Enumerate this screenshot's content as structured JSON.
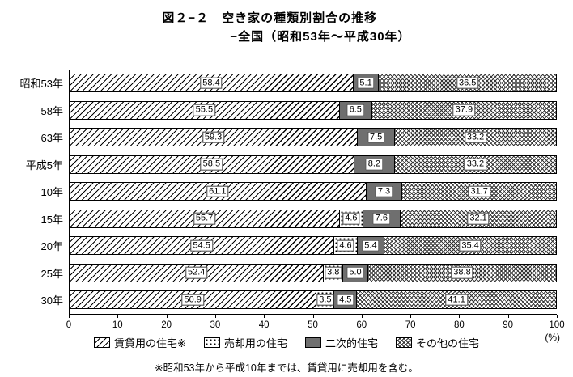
{
  "title": {
    "line1": "図２−２　空き家の種類別割合の推移",
    "line2": "−全国（昭和53年〜平成30年）"
  },
  "chart_data": {
    "type": "bar",
    "orientation": "horizontal",
    "stacked": true,
    "categories": [
      "昭和53年",
      "58年",
      "63年",
      "平成5年",
      "10年",
      "15年",
      "20年",
      "25年",
      "30年"
    ],
    "series": [
      {
        "key": "rental",
        "name": "賃貸用の住宅※",
        "pattern": "diagonal",
        "values": [
          58.4,
          55.5,
          59.3,
          58.5,
          61.1,
          55.7,
          54.5,
          52.4,
          50.9
        ]
      },
      {
        "key": "for-sale",
        "name": "売却用の住宅",
        "pattern": "dots",
        "values": [
          null,
          null,
          null,
          null,
          null,
          4.6,
          4.6,
          3.8,
          3.5
        ]
      },
      {
        "key": "secondary",
        "name": "二次的住宅",
        "pattern": "solid",
        "values": [
          5.1,
          6.5,
          7.5,
          8.2,
          7.3,
          7.6,
          5.4,
          5.0,
          4.5
        ]
      },
      {
        "key": "other",
        "name": "その他の住宅",
        "pattern": "cross",
        "values": [
          36.5,
          37.9,
          33.2,
          33.2,
          31.7,
          32.1,
          35.4,
          38.8,
          41.1
        ]
      }
    ],
    "xlim": [
      0,
      100
    ],
    "x_ticks": [
      0,
      10,
      20,
      30,
      40,
      50,
      60,
      70,
      80,
      90,
      100
    ],
    "x_unit": "(%)"
  },
  "footnote": "※昭和53年から平成10年までは、賃貸用に売却用を含む。"
}
